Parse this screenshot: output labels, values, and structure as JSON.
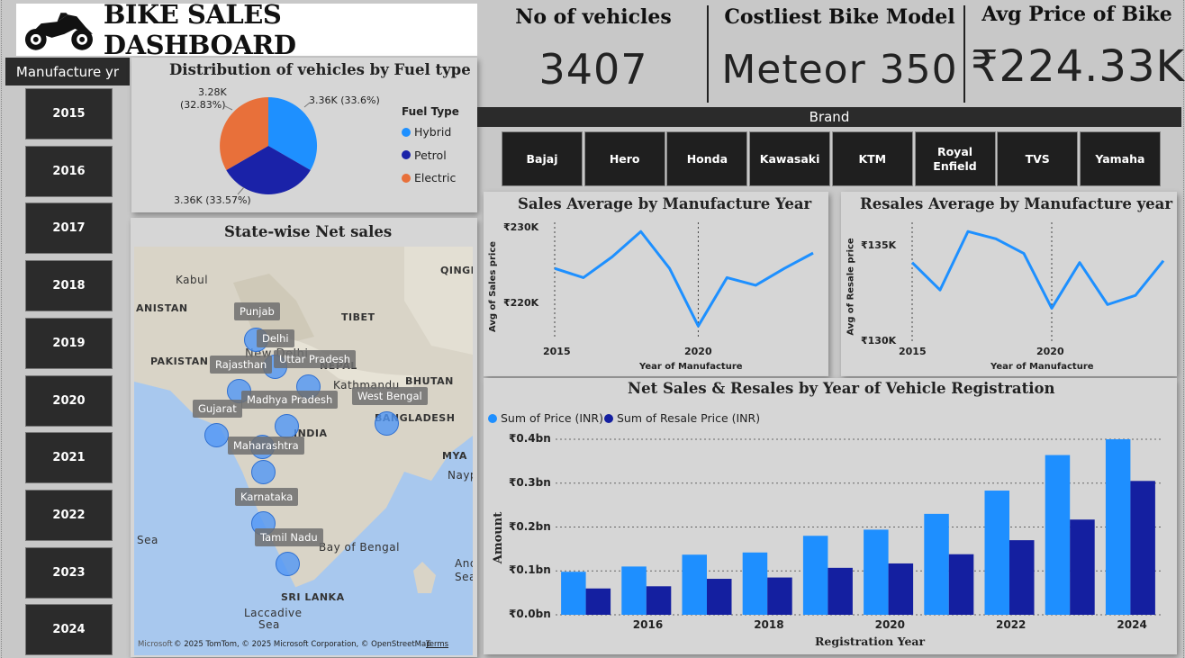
{
  "header": {
    "title": "BIKE SALES DASHBOARD",
    "logo_icon": "motorcycle-icon"
  },
  "kpis": {
    "vehicles": {
      "title": "No of vehicles",
      "value": "3407"
    },
    "costliest": {
      "title": "Costliest Bike Model",
      "value": "Meteor 350"
    },
    "avg_price": {
      "title": "Avg Price of Bike",
      "value": "₹224.33K"
    }
  },
  "year_slicer": {
    "header": "Manufacture yr",
    "years": [
      "2015",
      "2016",
      "2017",
      "2018",
      "2019",
      "2020",
      "2021",
      "2022",
      "2023",
      "2024"
    ]
  },
  "brand_slicer": {
    "header": "Brand",
    "brands": [
      "Bajaj",
      "Hero",
      "Honda",
      "Kawasaki",
      "KTM",
      "Royal Enfield",
      "TVS",
      "Yamaha"
    ]
  },
  "fuel_chart": {
    "title": "Distribution of vehicles by Fuel type",
    "legend_title": "Fuel Type",
    "labels": [
      "3.36K (33.6%)",
      "3.36K (33.57%)",
      "3.28K",
      "(32.83%)"
    ]
  },
  "map": {
    "title": "State-wise Net sales",
    "states": [
      "Punjab",
      "Delhi",
      "Uttar Pradesh",
      "Rajasthan",
      "Madhya Pradesh",
      "West Bengal",
      "Gujarat",
      "Maharashtra",
      "Karnataka",
      "Tamil Nadu"
    ],
    "places": [
      "Kabul",
      "ANISTAN",
      "PAKISTAN",
      "New Delhi",
      "TIBET",
      "NEPAL",
      "Kathmandu",
      "BHUTAN",
      "BANGLADESH",
      "INDIA",
      "MYA",
      "Nayp",
      "QINGH",
      "Sea",
      "Bay of Bengal",
      "Andar",
      "Sea",
      "SRI LANKA",
      "Laccadive",
      "Sea"
    ],
    "attribution": "© 2025 TomTom, © 2025 Microsoft Corporation, © OpenStreetMap",
    "terms": "Terms",
    "ms_logo": "Microsoft"
  },
  "sales_avg": {
    "title": "Sales Average by Manufacture Year",
    "xlabel": "Year of Manufacture",
    "ylabel": "Avg of Sales price",
    "yticks": [
      "₹230K",
      "₹220K"
    ],
    "xticks": [
      "2015",
      "2020"
    ]
  },
  "resales_avg": {
    "title": "Resales Average by Manufacture year",
    "xlabel": "Year of Manufacture",
    "ylabel": "Avg of Resale price",
    "yticks": [
      "₹135K",
      "₹130K"
    ],
    "xticks": [
      "2015",
      "2020"
    ]
  },
  "net_sales": {
    "title": "Net Sales & Resales by Year of Vehicle Registration",
    "xlabel": "Registration Year",
    "ylabel": "Amount",
    "yticks": [
      "₹0.4bn",
      "₹0.3bn",
      "₹0.2bn",
      "₹0.1bn",
      "₹0.0bn"
    ],
    "xticks": [
      "2016",
      "2018",
      "2020",
      "2022",
      "2024"
    ]
  },
  "colors": {
    "hybrid": "#1e90ff",
    "petrol": "#1a22a8",
    "electric": "#e8703a",
    "line": "#1e90ff",
    "bar_sales": "#1e8fff",
    "bar_resales": "#141fa0",
    "dark_tile": "#2b2b2b"
  },
  "chart_data": [
    {
      "type": "pie",
      "title": "Distribution of vehicles by Fuel type",
      "legend_title": "Fuel Type",
      "legend_position": "right",
      "slices": [
        {
          "name": "Hybrid",
          "value": 3360,
          "percent": 33.6,
          "color": "#1e90ff"
        },
        {
          "name": "Petrol",
          "value": 3360,
          "percent": 33.57,
          "color": "#1a22a8"
        },
        {
          "name": "Electric",
          "value": 3280,
          "percent": 32.83,
          "color": "#e8703a"
        }
      ]
    },
    {
      "type": "line",
      "title": "Sales Average by Manufacture Year",
      "xlabel": "Year of Manufacture",
      "ylabel": "Avg of Sales price",
      "x": [
        2015,
        2016,
        2017,
        2018,
        2019,
        2020,
        2021,
        2022,
        2023,
        2024
      ],
      "values": [
        225000,
        223800,
        226500,
        229800,
        225000,
        217500,
        223800,
        222800,
        225000,
        227000
      ],
      "xlim": [
        2015,
        2024
      ],
      "ylim": [
        216000,
        231000
      ]
    },
    {
      "type": "line",
      "title": "Resales Average by Manufacture year",
      "xlabel": "Year of Manufacture",
      "ylabel": "Avg of Resale price",
      "x": [
        2015,
        2016,
        2017,
        2018,
        2019,
        2020,
        2021,
        2022,
        2023,
        2024
      ],
      "values": [
        134300,
        132800,
        136000,
        135600,
        134800,
        131800,
        134300,
        132000,
        132500,
        134400
      ],
      "xlim": [
        2015,
        2024
      ],
      "ylim": [
        130000,
        136500
      ]
    },
    {
      "type": "bar",
      "title": "Net Sales & Resales by Year of Vehicle Registration",
      "xlabel": "Registration Year",
      "ylabel": "Amount",
      "legend_position": "top-left",
      "categories": [
        "2015",
        "2016",
        "2017",
        "2018",
        "2019",
        "2020",
        "2021",
        "2022",
        "2023",
        "2024"
      ],
      "ylim": [
        0,
        0.4
      ],
      "series": [
        {
          "name": "Sum of Price (INR)",
          "color": "#1e8fff",
          "values": [
            0.098,
            0.11,
            0.137,
            0.142,
            0.18,
            0.194,
            0.23,
            0.283,
            0.364,
            0.4
          ]
        },
        {
          "name": "Sum of Resale Price (INR)",
          "color": "#141fa0",
          "values": [
            0.06,
            0.065,
            0.082,
            0.085,
            0.107,
            0.117,
            0.138,
            0.17,
            0.217,
            0.305
          ]
        }
      ]
    }
  ]
}
